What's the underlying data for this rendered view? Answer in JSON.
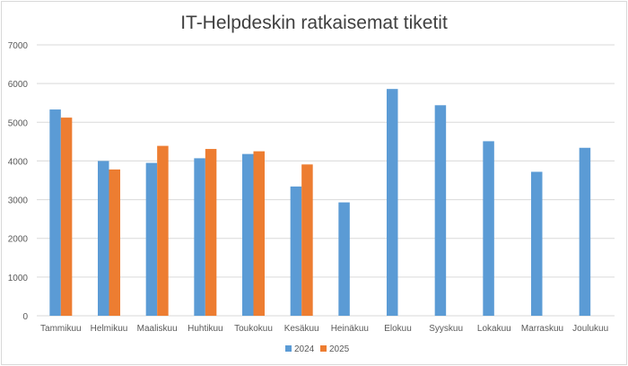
{
  "chart_data": {
    "type": "bar",
    "title": "IT-Helpdeskin ratkaisemat tiketit",
    "xlabel": "",
    "ylabel": "",
    "categories": [
      "Tammikuu",
      "Helmikuu",
      "Maaliskuu",
      "Huhtikuu",
      "Toukokuu",
      "Kesäkuu",
      "Heinäkuu",
      "Elokuu",
      "Syyskuu",
      "Lokakuu",
      "Marraskuu",
      "Joulukuu"
    ],
    "series": [
      {
        "name": "2024",
        "color": "#5b9bd5",
        "values": [
          5330,
          4000,
          3950,
          4070,
          4180,
          3340,
          2930,
          5860,
          5440,
          4510,
          3720,
          4340
        ]
      },
      {
        "name": "2025",
        "color": "#ed7d31",
        "values": [
          5120,
          3780,
          4390,
          4310,
          4250,
          3910,
          null,
          null,
          null,
          null,
          null,
          null
        ]
      }
    ],
    "ylim": [
      0,
      7000
    ],
    "yticks": [
      0,
      1000,
      2000,
      3000,
      4000,
      5000,
      6000,
      7000
    ],
    "grid": true,
    "legend": "bottom-center"
  }
}
